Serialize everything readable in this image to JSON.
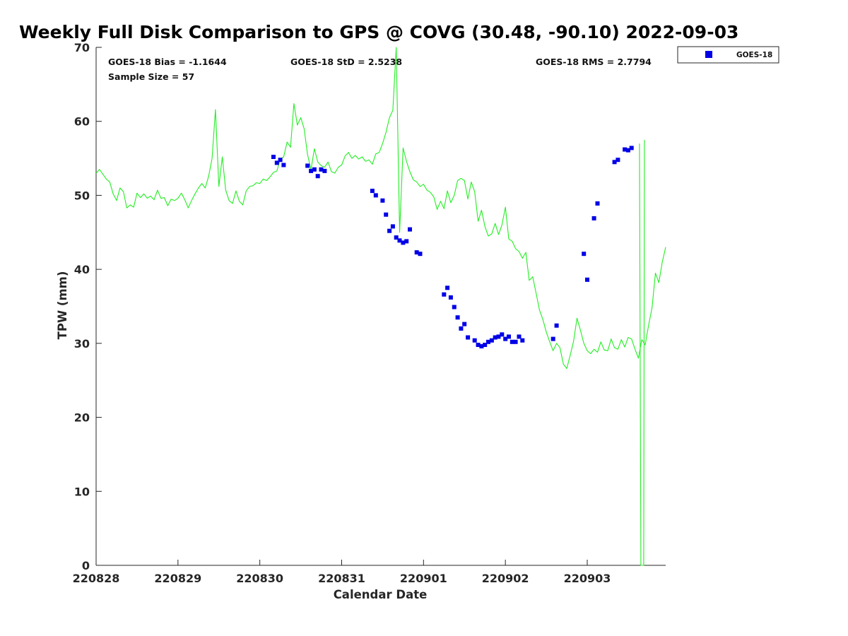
{
  "chart_data": {
    "type": "scatter",
    "title": "Weekly Full Disk Comparison to GPS @ COVG (30.48, -90.10) 2022-09-03",
    "xlabel": "Calendar Date",
    "ylabel": "TPW (mm)",
    "xticks": [
      "220828",
      "220829",
      "220830",
      "220831",
      "220901",
      "220902",
      "220903"
    ],
    "xlim": [
      "2022-08-28T00:00",
      "2022-09-03T23:00"
    ],
    "ylim": [
      0,
      70
    ],
    "yticks": [
      0,
      10,
      20,
      30,
      40,
      50,
      60,
      70
    ],
    "grid": false,
    "legend_position": "outside-top-right",
    "stats": {
      "bias": "GOES-18 Bias = -1.1644",
      "std": "GOES-18 StD = 2.5238",
      "rms": "GOES-18 RMS = 2.7794",
      "sample": "Sample Size = 57"
    },
    "series": [
      {
        "name": "GOES-18",
        "kind": "scatter",
        "color": "#0000e6",
        "marker": "square",
        "points": [
          [
            "2022-08-30T04:00",
            55.2
          ],
          [
            "2022-08-30T05:00",
            54.4
          ],
          [
            "2022-08-30T06:00",
            54.8
          ],
          [
            "2022-08-30T07:00",
            54.1
          ],
          [
            "2022-08-30T14:00",
            54.0
          ],
          [
            "2022-08-30T15:00",
            53.3
          ],
          [
            "2022-08-30T16:00",
            53.5
          ],
          [
            "2022-08-30T17:00",
            52.6
          ],
          [
            "2022-08-30T18:00",
            53.5
          ],
          [
            "2022-08-30T19:00",
            53.3
          ],
          [
            "2022-08-31T09:00",
            50.6
          ],
          [
            "2022-08-31T10:00",
            50.0
          ],
          [
            "2022-08-31T12:00",
            49.3
          ],
          [
            "2022-08-31T13:00",
            47.4
          ],
          [
            "2022-08-31T14:00",
            45.2
          ],
          [
            "2022-08-31T15:00",
            45.8
          ],
          [
            "2022-08-31T16:00",
            44.3
          ],
          [
            "2022-08-31T17:00",
            43.9
          ],
          [
            "2022-08-31T18:00",
            43.6
          ],
          [
            "2022-08-31T19:00",
            43.8
          ],
          [
            "2022-08-31T20:00",
            45.4
          ],
          [
            "2022-08-31T22:00",
            42.3
          ],
          [
            "2022-08-31T23:00",
            42.1
          ],
          [
            "2022-09-01T06:00",
            36.6
          ],
          [
            "2022-09-01T07:00",
            37.5
          ],
          [
            "2022-09-01T08:00",
            36.2
          ],
          [
            "2022-09-01T09:00",
            34.9
          ],
          [
            "2022-09-01T10:00",
            33.5
          ],
          [
            "2022-09-01T11:00",
            32.0
          ],
          [
            "2022-09-01T12:00",
            32.6
          ],
          [
            "2022-09-01T13:00",
            30.8
          ],
          [
            "2022-09-01T15:00",
            30.4
          ],
          [
            "2022-09-01T16:00",
            29.8
          ],
          [
            "2022-09-01T17:00",
            29.6
          ],
          [
            "2022-09-01T18:00",
            29.8
          ],
          [
            "2022-09-01T19:00",
            30.2
          ],
          [
            "2022-09-01T20:00",
            30.4
          ],
          [
            "2022-09-01T21:00",
            30.8
          ],
          [
            "2022-09-01T22:00",
            30.9
          ],
          [
            "2022-09-01T23:00",
            31.2
          ],
          [
            "2022-09-02T00:00",
            30.6
          ],
          [
            "2022-09-02T01:00",
            30.9
          ],
          [
            "2022-09-02T02:00",
            30.2
          ],
          [
            "2022-09-02T03:00",
            30.2
          ],
          [
            "2022-09-02T04:00",
            30.9
          ],
          [
            "2022-09-02T05:00",
            30.4
          ],
          [
            "2022-09-02T14:00",
            30.6
          ],
          [
            "2022-09-02T15:00",
            32.4
          ],
          [
            "2022-09-02T23:00",
            42.1
          ],
          [
            "2022-09-03T00:00",
            38.6
          ],
          [
            "2022-09-03T02:00",
            46.9
          ],
          [
            "2022-09-03T03:00",
            48.9
          ],
          [
            "2022-09-03T08:00",
            54.5
          ],
          [
            "2022-09-03T09:00",
            54.8
          ],
          [
            "2022-09-03T11:00",
            56.2
          ],
          [
            "2022-09-03T12:00",
            56.1
          ],
          [
            "2022-09-03T13:00",
            56.4
          ]
        ]
      },
      {
        "kind": "line",
        "color": "#22ee22",
        "points": [
          [
            "2022-08-28T00:00",
            53.0
          ],
          [
            "2022-08-28T01:00",
            53.5
          ],
          [
            "2022-08-28T03:00",
            52.2
          ],
          [
            "2022-08-28T04:00",
            51.8
          ],
          [
            "2022-08-28T05:00",
            50.2
          ],
          [
            "2022-08-28T06:00",
            49.3
          ],
          [
            "2022-08-28T07:00",
            51.0
          ],
          [
            "2022-08-28T08:00",
            50.5
          ],
          [
            "2022-08-28T09:00",
            48.3
          ],
          [
            "2022-08-28T10:00",
            48.7
          ],
          [
            "2022-08-28T11:00",
            48.4
          ],
          [
            "2022-08-28T12:00",
            50.3
          ],
          [
            "2022-08-28T13:00",
            49.7
          ],
          [
            "2022-08-28T14:00",
            50.2
          ],
          [
            "2022-08-28T15:00",
            49.6
          ],
          [
            "2022-08-28T16:00",
            49.9
          ],
          [
            "2022-08-28T17:00",
            49.4
          ],
          [
            "2022-08-28T18:00",
            50.7
          ],
          [
            "2022-08-28T19:00",
            49.6
          ],
          [
            "2022-08-28T20:00",
            49.7
          ],
          [
            "2022-08-28T21:00",
            48.6
          ],
          [
            "2022-08-28T22:00",
            49.5
          ],
          [
            "2022-08-28T23:00",
            49.3
          ],
          [
            "2022-08-29T00:00",
            49.6
          ],
          [
            "2022-08-29T01:00",
            50.3
          ],
          [
            "2022-08-29T02:00",
            49.4
          ],
          [
            "2022-08-29T03:00",
            48.3
          ],
          [
            "2022-08-29T04:00",
            49.3
          ],
          [
            "2022-08-29T05:00",
            50.2
          ],
          [
            "2022-08-29T06:00",
            51.0
          ],
          [
            "2022-08-29T07:00",
            51.6
          ],
          [
            "2022-08-29T08:00",
            51.0
          ],
          [
            "2022-08-29T09:00",
            52.6
          ],
          [
            "2022-08-29T10:00",
            55.0
          ],
          [
            "2022-08-29T11:00",
            61.6
          ],
          [
            "2022-08-29T12:00",
            51.2
          ],
          [
            "2022-08-29T13:00",
            55.2
          ],
          [
            "2022-08-29T14:00",
            50.7
          ],
          [
            "2022-08-29T15:00",
            49.3
          ],
          [
            "2022-08-29T16:00",
            48.9
          ],
          [
            "2022-08-29T17:00",
            50.6
          ],
          [
            "2022-08-29T18:00",
            49.2
          ],
          [
            "2022-08-29T19:00",
            48.7
          ],
          [
            "2022-08-29T20:00",
            50.6
          ],
          [
            "2022-08-29T21:00",
            51.2
          ],
          [
            "2022-08-29T22:00",
            51.3
          ],
          [
            "2022-08-29T23:00",
            51.7
          ],
          [
            "2022-08-30T00:00",
            51.6
          ],
          [
            "2022-08-30T01:00",
            52.2
          ],
          [
            "2022-08-30T02:00",
            52.0
          ],
          [
            "2022-08-30T03:00",
            52.5
          ],
          [
            "2022-08-30T04:00",
            53.1
          ],
          [
            "2022-08-30T05:00",
            53.3
          ],
          [
            "2022-08-30T06:00",
            54.9
          ],
          [
            "2022-08-30T07:00",
            55.2
          ],
          [
            "2022-08-30T08:00",
            57.2
          ],
          [
            "2022-08-30T09:00",
            56.5
          ],
          [
            "2022-08-30T10:00",
            62.4
          ],
          [
            "2022-08-30T11:00",
            59.5
          ],
          [
            "2022-08-30T12:00",
            60.5
          ],
          [
            "2022-08-30T13:00",
            59.0
          ],
          [
            "2022-08-30T14:00",
            55.5
          ],
          [
            "2022-08-30T15:00",
            53.5
          ],
          [
            "2022-08-30T16:00",
            56.3
          ],
          [
            "2022-08-30T17:00",
            54.5
          ],
          [
            "2022-08-30T18:00",
            54.0
          ],
          [
            "2022-08-30T19:00",
            53.8
          ],
          [
            "2022-08-30T20:00",
            54.5
          ],
          [
            "2022-08-30T21:00",
            53.2
          ],
          [
            "2022-08-30T22:00",
            53.0
          ],
          [
            "2022-08-30T23:00",
            53.8
          ],
          [
            "2022-08-31T00:00",
            54.1
          ],
          [
            "2022-08-31T01:00",
            55.3
          ],
          [
            "2022-08-31T02:00",
            55.8
          ],
          [
            "2022-08-31T03:00",
            55.0
          ],
          [
            "2022-08-31T04:00",
            55.4
          ],
          [
            "2022-08-31T05:00",
            54.9
          ],
          [
            "2022-08-31T06:00",
            55.2
          ],
          [
            "2022-08-31T07:00",
            54.6
          ],
          [
            "2022-08-31T08:00",
            54.8
          ],
          [
            "2022-08-31T09:00",
            54.2
          ],
          [
            "2022-08-31T10:00",
            55.6
          ],
          [
            "2022-08-31T11:00",
            55.8
          ],
          [
            "2022-08-31T12:00",
            57.0
          ],
          [
            "2022-08-31T13:00",
            58.5
          ],
          [
            "2022-08-31T14:00",
            60.5
          ],
          [
            "2022-08-31T15:00",
            61.5
          ],
          [
            "2022-08-31T16:00",
            70.0
          ],
          [
            "2022-08-31T17:00",
            45.0
          ],
          [
            "2022-08-31T18:00",
            56.4
          ],
          [
            "2022-08-31T19:00",
            54.6
          ],
          [
            "2022-08-31T20:00",
            53.2
          ],
          [
            "2022-08-31T21:00",
            52.1
          ],
          [
            "2022-08-31T22:00",
            51.8
          ],
          [
            "2022-08-31T23:00",
            51.2
          ],
          [
            "2022-09-01T00:00",
            51.5
          ],
          [
            "2022-09-01T01:00",
            50.7
          ],
          [
            "2022-09-01T02:00",
            50.4
          ],
          [
            "2022-09-01T03:00",
            49.8
          ],
          [
            "2022-09-01T04:00",
            48.1
          ],
          [
            "2022-09-01T05:00",
            49.2
          ],
          [
            "2022-09-01T06:00",
            48.2
          ],
          [
            "2022-09-01T07:00",
            50.6
          ],
          [
            "2022-09-01T08:00",
            49.0
          ],
          [
            "2022-09-01T09:00",
            50.0
          ],
          [
            "2022-09-01T10:00",
            52.0
          ],
          [
            "2022-09-01T11:00",
            52.3
          ],
          [
            "2022-09-01T12:00",
            52.0
          ],
          [
            "2022-09-01T13:00",
            49.5
          ],
          [
            "2022-09-01T14:00",
            51.8
          ],
          [
            "2022-09-01T15:00",
            50.5
          ],
          [
            "2022-09-01T16:00",
            46.5
          ],
          [
            "2022-09-01T17:00",
            48.0
          ],
          [
            "2022-09-01T18:00",
            45.8
          ],
          [
            "2022-09-01T19:00",
            44.5
          ],
          [
            "2022-09-01T20:00",
            44.8
          ],
          [
            "2022-09-01T21:00",
            46.2
          ],
          [
            "2022-09-01T22:00",
            44.7
          ],
          [
            "2022-09-01T23:00",
            46.0
          ],
          [
            "2022-09-02T00:00",
            48.4
          ],
          [
            "2022-09-02T01:00",
            44.1
          ],
          [
            "2022-09-02T02:00",
            43.8
          ],
          [
            "2022-09-02T03:00",
            42.8
          ],
          [
            "2022-09-02T04:00",
            42.4
          ],
          [
            "2022-09-02T05:00",
            41.5
          ],
          [
            "2022-09-02T06:00",
            42.3
          ],
          [
            "2022-09-02T07:00",
            38.5
          ],
          [
            "2022-09-02T08:00",
            39.0
          ],
          [
            "2022-09-02T09:00",
            36.8
          ],
          [
            "2022-09-02T10:00",
            34.5
          ],
          [
            "2022-09-02T11:00",
            33.2
          ],
          [
            "2022-09-02T12:00",
            31.5
          ],
          [
            "2022-09-02T13:00",
            30.2
          ],
          [
            "2022-09-02T14:00",
            29.0
          ],
          [
            "2022-09-02T15:00",
            30.0
          ],
          [
            "2022-09-02T16:00",
            29.4
          ],
          [
            "2022-09-02T17:00",
            27.2
          ],
          [
            "2022-09-02T18:00",
            26.6
          ],
          [
            "2022-09-02T19:00",
            28.4
          ],
          [
            "2022-09-02T20:00",
            30.3
          ],
          [
            "2022-09-02T21:00",
            33.4
          ],
          [
            "2022-09-02T22:00",
            31.8
          ],
          [
            "2022-09-02T23:00",
            30.0
          ],
          [
            "2022-09-03T00:00",
            29.0
          ],
          [
            "2022-09-03T01:00",
            28.6
          ],
          [
            "2022-09-03T02:00",
            29.2
          ],
          [
            "2022-09-03T03:00",
            28.8
          ],
          [
            "2022-09-03T04:00",
            30.2
          ],
          [
            "2022-09-03T05:00",
            29.1
          ],
          [
            "2022-09-03T06:00",
            29.0
          ],
          [
            "2022-09-03T07:00",
            30.6
          ],
          [
            "2022-09-03T08:00",
            29.4
          ],
          [
            "2022-09-03T09:00",
            29.2
          ],
          [
            "2022-09-03T10:00",
            30.5
          ],
          [
            "2022-09-03T11:00",
            29.5
          ],
          [
            "2022-09-03T12:00",
            30.8
          ],
          [
            "2022-09-03T13:00",
            30.6
          ],
          [
            "2022-09-03T14:00",
            29.2
          ],
          [
            "2022-09-03T15:00",
            28.0
          ],
          [
            "2022-09-03T16:00",
            30.5
          ],
          [
            "2022-09-03T17:00",
            29.8
          ],
          [
            "2022-09-03T18:00",
            32.5
          ],
          [
            "2022-09-03T19:00",
            34.8
          ],
          [
            "2022-09-03T20:00",
            39.5
          ],
          [
            "2022-09-03T21:00",
            38.2
          ],
          [
            "2022-09-03T22:00",
            41.0
          ],
          [
            "2022-09-03T23:00",
            43.0
          ]
        ]
      }
    ]
  },
  "legend": {
    "label": "GOES-18"
  }
}
